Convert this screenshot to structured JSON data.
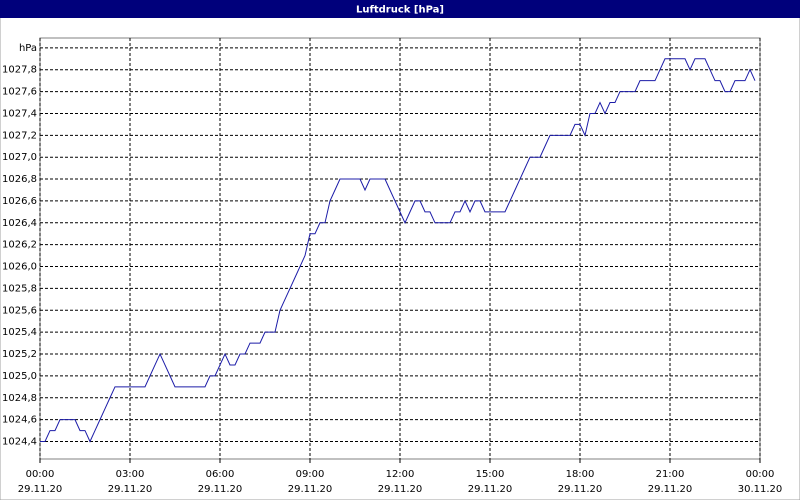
{
  "chart_data": {
    "type": "line",
    "title": "Luftdruck [hPa]",
    "color": "#1c1ca8",
    "grid": true,
    "x": [
      0,
      10,
      20,
      30,
      40,
      50,
      60,
      70,
      80,
      90,
      100,
      110,
      120,
      130,
      140,
      150,
      160,
      170,
      180,
      190,
      200,
      210,
      220,
      230,
      240,
      250,
      260,
      270,
      280,
      290,
      300,
      310,
      320,
      330,
      340,
      350,
      360,
      370,
      380,
      390,
      400,
      410,
      420,
      430,
      440,
      450,
      460,
      470,
      480,
      490,
      500,
      510,
      520,
      530,
      540,
      550,
      560,
      570,
      580,
      590,
      600,
      610,
      620,
      630,
      640,
      650,
      660,
      670,
      680,
      690,
      700,
      710,
      720,
      730,
      740,
      750,
      760,
      770,
      780,
      790,
      800,
      810,
      820,
      830,
      840,
      850,
      860,
      870,
      880,
      890,
      900,
      910,
      920,
      930,
      940,
      950,
      960,
      970,
      980,
      990,
      1000,
      1010,
      1020,
      1030,
      1040,
      1050,
      1060,
      1070,
      1080,
      1090,
      1100,
      1110,
      1120,
      1130,
      1140,
      1150,
      1160,
      1170,
      1180,
      1190,
      1200,
      1210,
      1220,
      1230,
      1240,
      1250,
      1260,
      1270,
      1280,
      1290,
      1300,
      1310,
      1320,
      1330,
      1340,
      1350,
      1360,
      1370,
      1380,
      1390,
      1400,
      1410,
      1420,
      1430
    ],
    "values": [
      1024.4,
      1024.4,
      1024.5,
      1024.5,
      1024.6,
      1024.6,
      1024.6,
      1024.6,
      1024.5,
      1024.5,
      1024.4,
      1024.5,
      1024.6,
      1024.7,
      1024.8,
      1024.9,
      1024.9,
      1024.9,
      1024.9,
      1024.9,
      1024.9,
      1024.9,
      1025.0,
      1025.1,
      1025.2,
      1025.1,
      1025.0,
      1024.9,
      1024.9,
      1024.9,
      1024.9,
      1024.9,
      1024.9,
      1024.9,
      1025.0,
      1025.0,
      1025.1,
      1025.2,
      1025.1,
      1025.1,
      1025.2,
      1025.2,
      1025.3,
      1025.3,
      1025.3,
      1025.4,
      1025.4,
      1025.4,
      1025.6,
      1025.7,
      1025.8,
      1025.9,
      1026.0,
      1026.1,
      1026.3,
      1026.3,
      1026.4,
      1026.4,
      1026.6,
      1026.7,
      1026.8,
      1026.8,
      1026.8,
      1026.8,
      1026.8,
      1026.7,
      1026.8,
      1026.8,
      1026.8,
      1026.8,
      1026.7,
      1026.6,
      1026.5,
      1026.4,
      1026.5,
      1026.6,
      1026.6,
      1026.5,
      1026.5,
      1026.4,
      1026.4,
      1026.4,
      1026.4,
      1026.5,
      1026.5,
      1026.6,
      1026.5,
      1026.6,
      1026.6,
      1026.5,
      1026.5,
      1026.5,
      1026.5,
      1026.5,
      1026.6,
      1026.7,
      1026.8,
      1026.9,
      1027.0,
      1027.0,
      1027.0,
      1027.1,
      1027.2,
      1027.2,
      1027.2,
      1027.2,
      1027.2,
      1027.3,
      1027.3,
      1027.2,
      1027.4,
      1027.4,
      1027.5,
      1027.4,
      1027.5,
      1027.5,
      1027.6,
      1027.6,
      1027.6,
      1027.6,
      1027.7,
      1027.7,
      1027.7,
      1027.7,
      1027.8,
      1027.9,
      1027.9,
      1027.9,
      1027.9,
      1027.9,
      1027.8,
      1027.9,
      1027.9,
      1027.9,
      1027.8,
      1027.7,
      1027.7,
      1027.6,
      1027.6,
      1027.7,
      1027.7,
      1027.7,
      1027.8,
      1027.7
    ],
    "xlim": [
      0,
      1440
    ],
    "xticks": [
      {
        "value": 0,
        "label": "00:00"
      },
      {
        "value": 180,
        "label": "03:00"
      },
      {
        "value": 360,
        "label": "06:00"
      },
      {
        "value": 540,
        "label": "09:00"
      },
      {
        "value": 720,
        "label": "12:00"
      },
      {
        "value": 900,
        "label": "15:00"
      },
      {
        "value": 1080,
        "label": "18:00"
      },
      {
        "value": 1260,
        "label": "21:00"
      },
      {
        "value": 1440,
        "label": "00:00"
      }
    ],
    "xtick_dates": [
      "29.11.20",
      "29.11.20",
      "29.11.20",
      "29.11.20",
      "29.11.20",
      "29.11.20",
      "29.11.20",
      "29.11.20",
      "30.11.20"
    ],
    "ylim": [
      1024.24,
      1028.09
    ],
    "yticks": [
      {
        "value": 1024.4,
        "label": "1024,4"
      },
      {
        "value": 1024.6,
        "label": "1024,6"
      },
      {
        "value": 1024.8,
        "label": "1024,8"
      },
      {
        "value": 1025.0,
        "label": "1025,0"
      },
      {
        "value": 1025.2,
        "label": "1025,2"
      },
      {
        "value": 1025.4,
        "label": "1025,4"
      },
      {
        "value": 1025.6,
        "label": "1025,6"
      },
      {
        "value": 1025.8,
        "label": "1025,8"
      },
      {
        "value": 1026.0,
        "label": "1026,0"
      },
      {
        "value": 1026.2,
        "label": "1026,2"
      },
      {
        "value": 1026.4,
        "label": "1026,4"
      },
      {
        "value": 1026.6,
        "label": "1026,6"
      },
      {
        "value": 1026.8,
        "label": "1026,8"
      },
      {
        "value": 1027.0,
        "label": "1027,0"
      },
      {
        "value": 1027.2,
        "label": "1027,2"
      },
      {
        "value": 1027.4,
        "label": "1027,4"
      },
      {
        "value": 1027.6,
        "label": "1027,6"
      },
      {
        "value": 1027.8,
        "label": "1027,8"
      },
      {
        "value": 1028.0,
        "label": "hPa"
      }
    ]
  }
}
